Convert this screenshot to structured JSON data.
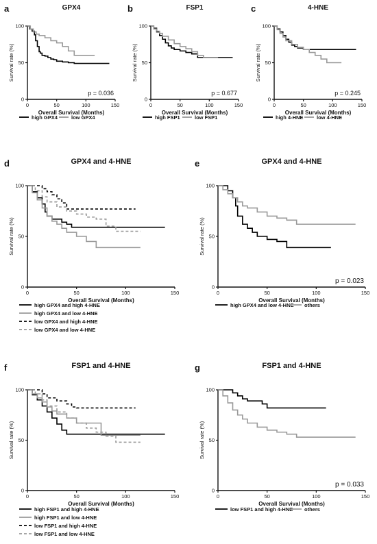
{
  "chart_data": [
    {
      "panel": "a",
      "type": "line",
      "title": "GPX4",
      "xlabel": "Overall Survival (Months)",
      "ylabel": "Survival rate (%)",
      "xlim": [
        0,
        150
      ],
      "ylim": [
        0,
        100
      ],
      "xticks": [
        "0",
        "50",
        "100",
        "150"
      ],
      "yticks": [
        "0",
        "50",
        "100"
      ],
      "pvalue": "p = 0.036",
      "series": [
        {
          "name": "high GPX4",
          "color": "#000000",
          "dash": "solid",
          "x": [
            0,
            4,
            8,
            12,
            14,
            17,
            20,
            22,
            25,
            30,
            35,
            40,
            45,
            50,
            60,
            70,
            80,
            100,
            140
          ],
          "y": [
            100,
            96,
            93,
            88,
            80,
            72,
            65,
            63,
            60,
            59,
            57,
            55,
            54,
            52,
            51,
            50,
            49,
            49,
            49
          ]
        },
        {
          "name": "low GPX4",
          "color": "#999999",
          "dash": "solid",
          "x": [
            0,
            5,
            10,
            15,
            20,
            30,
            40,
            50,
            60,
            70,
            80,
            90,
            115
          ],
          "y": [
            100,
            96,
            92,
            89,
            87,
            84,
            80,
            77,
            72,
            66,
            60,
            60,
            60
          ]
        }
      ]
    },
    {
      "panel": "b",
      "type": "line",
      "title": "FSP1",
      "xlabel": "Overall Survival (Months)",
      "ylabel": "Survival rate (%)",
      "xlim": [
        0,
        150
      ],
      "ylim": [
        0,
        100
      ],
      "xticks": [
        "0",
        "50",
        "100",
        "150"
      ],
      "yticks": [
        "0",
        "50",
        "100"
      ],
      "pvalue": "p = 0.677",
      "series": [
        {
          "name": "high FSP1",
          "color": "#000000",
          "dash": "solid",
          "x": [
            0,
            5,
            10,
            15,
            20,
            25,
            30,
            35,
            40,
            50,
            60,
            70,
            80,
            100,
            140
          ],
          "y": [
            100,
            97,
            92,
            87,
            82,
            77,
            73,
            70,
            68,
            66,
            64,
            62,
            57,
            57,
            57
          ]
        },
        {
          "name": "low FSP1",
          "color": "#999999",
          "dash": "solid",
          "x": [
            0,
            5,
            10,
            15,
            20,
            30,
            40,
            50,
            60,
            70,
            80,
            90,
            115
          ],
          "y": [
            100,
            96,
            93,
            90,
            86,
            81,
            76,
            72,
            69,
            65,
            60,
            57,
            57
          ]
        }
      ]
    },
    {
      "panel": "c",
      "type": "line",
      "title": "4-HNE",
      "xlabel": "Overall Survival (Months)",
      "ylabel": "Survival rate (%)",
      "xlim": [
        0,
        150
      ],
      "ylim": [
        0,
        100
      ],
      "xticks": [
        "0",
        "50",
        "100",
        "150"
      ],
      "yticks": [
        "0",
        "50",
        "100"
      ],
      "pvalue": "p = 0.245",
      "series": [
        {
          "name": "high 4-HNE",
          "color": "#000000",
          "dash": "solid",
          "x": [
            0,
            5,
            10,
            15,
            20,
            25,
            30,
            35,
            40,
            50,
            140
          ],
          "y": [
            100,
            96,
            92,
            87,
            82,
            78,
            74,
            72,
            70,
            68,
            68
          ]
        },
        {
          "name": "low 4-HNE",
          "color": "#999999",
          "dash": "solid",
          "x": [
            0,
            5,
            10,
            15,
            20,
            30,
            40,
            50,
            60,
            70,
            80,
            90,
            115
          ],
          "y": [
            100,
            95,
            90,
            85,
            80,
            75,
            71,
            68,
            64,
            60,
            55,
            50,
            50
          ]
        }
      ]
    },
    {
      "panel": "d",
      "type": "line",
      "title": "GPX4 and 4-HNE",
      "xlabel": "Overall Survival (Months)",
      "ylabel": "Survival rate (%)",
      "xlim": [
        0,
        150
      ],
      "ylim": [
        0,
        100
      ],
      "xticks": [
        "0",
        "50",
        "100",
        "150"
      ],
      "yticks": [
        "0",
        "50",
        "100"
      ],
      "pvalue": "",
      "series": [
        {
          "name": "high GPX4 and high 4-HNE",
          "color": "#000000",
          "dash": "solid",
          "x": [
            0,
            5,
            10,
            15,
            18,
            20,
            25,
            35,
            40,
            45,
            140
          ],
          "y": [
            100,
            94,
            88,
            82,
            74,
            70,
            67,
            64,
            62,
            59,
            59
          ]
        },
        {
          "name": "high GPX4 and low 4-HNE",
          "color": "#999999",
          "dash": "solid",
          "x": [
            0,
            5,
            10,
            15,
            20,
            25,
            30,
            35,
            40,
            50,
            60,
            70,
            115
          ],
          "y": [
            100,
            93,
            86,
            78,
            70,
            65,
            62,
            58,
            54,
            50,
            45,
            39,
            39
          ]
        },
        {
          "name": "low GPX4 and high 4-HNE",
          "color": "#000000",
          "dash": "dashed",
          "x": [
            0,
            10,
            15,
            20,
            25,
            30,
            35,
            40,
            110
          ],
          "y": [
            100,
            100,
            97,
            94,
            91,
            87,
            83,
            77,
            77
          ]
        },
        {
          "name": "low GPX4 and low 4-HNE",
          "color": "#999999",
          "dash": "dashed",
          "x": [
            0,
            8,
            15,
            20,
            30,
            40,
            50,
            60,
            70,
            80,
            90,
            115
          ],
          "y": [
            100,
            95,
            89,
            84,
            79,
            75,
            72,
            69,
            67,
            60,
            55,
            55
          ]
        }
      ]
    },
    {
      "panel": "e",
      "type": "line",
      "title": "GPX4 and 4-HNE",
      "xlabel": "Overall Survival (Months)",
      "ylabel": "Survival rate (%)",
      "xlim": [
        0,
        150
      ],
      "ylim": [
        0,
        100
      ],
      "xticks": [
        "0",
        "50",
        "100",
        "150"
      ],
      "yticks": [
        "0",
        "50",
        "100"
      ],
      "pvalue": "p = 0.023",
      "series": [
        {
          "name": "high GPX4 and low 4-HNE",
          "color": "#000000",
          "dash": "solid",
          "x": [
            0,
            10,
            15,
            18,
            20,
            25,
            30,
            35,
            40,
            50,
            60,
            70,
            115
          ],
          "y": [
            100,
            95,
            88,
            80,
            70,
            62,
            58,
            54,
            50,
            47,
            45,
            39,
            39
          ]
        },
        {
          "name": "others",
          "color": "#999999",
          "dash": "solid",
          "x": [
            0,
            5,
            10,
            15,
            20,
            25,
            30,
            40,
            50,
            60,
            70,
            80,
            100,
            140
          ],
          "y": [
            100,
            96,
            92,
            88,
            84,
            80,
            78,
            74,
            70,
            68,
            66,
            62,
            62,
            62
          ]
        }
      ]
    },
    {
      "panel": "f",
      "type": "line",
      "title": "FSP1 and 4-HNE",
      "xlabel": "Overall Survival (Months)",
      "ylabel": "Survival rate (%)",
      "xlim": [
        0,
        150
      ],
      "ylim": [
        0,
        100
      ],
      "xticks": [
        "0",
        "50",
        "100",
        "150"
      ],
      "yticks": [
        "0",
        "50",
        "100"
      ],
      "pvalue": "",
      "series": [
        {
          "name": "high FSP1 and high 4-HNE",
          "color": "#000000",
          "dash": "solid",
          "x": [
            0,
            5,
            10,
            15,
            20,
            25,
            30,
            35,
            40,
            140
          ],
          "y": [
            100,
            95,
            90,
            84,
            78,
            72,
            66,
            60,
            56,
            56
          ]
        },
        {
          "name": "high FSP1 and low 4-HNE",
          "color": "#999999",
          "dash": "solid",
          "x": [
            0,
            5,
            10,
            15,
            20,
            25,
            30,
            40,
            50,
            60,
            70,
            75,
            80,
            115
          ],
          "y": [
            100,
            96,
            92,
            88,
            83,
            79,
            76,
            72,
            67,
            67,
            67,
            55,
            55,
            55
          ]
        },
        {
          "name": "low FSP1 and high 4-HNE",
          "color": "#000000",
          "dash": "dashed",
          "x": [
            0,
            10,
            15,
            20,
            30,
            40,
            45,
            50,
            110
          ],
          "y": [
            100,
            100,
            96,
            92,
            89,
            86,
            83,
            82,
            82
          ]
        },
        {
          "name": "low FSP1 and low 4-HNE",
          "color": "#999999",
          "dash": "dashed",
          "x": [
            0,
            8,
            15,
            20,
            30,
            40,
            50,
            60,
            70,
            80,
            90,
            115
          ],
          "y": [
            100,
            96,
            90,
            84,
            78,
            72,
            67,
            62,
            58,
            54,
            48,
            48
          ]
        }
      ]
    },
    {
      "panel": "g",
      "type": "line",
      "title": "FSP1 and 4-HNE",
      "xlabel": "Overall Survival (Months)",
      "ylabel": "Survival rate (%)",
      "xlim": [
        0,
        150
      ],
      "ylim": [
        0,
        100
      ],
      "xticks": [
        "0",
        "50",
        "100",
        "150"
      ],
      "yticks": [
        "0",
        "50",
        "100"
      ],
      "pvalue": "p = 0.033",
      "series": [
        {
          "name": "low FSP1 and high 4-HNE",
          "color": "#000000",
          "dash": "solid",
          "x": [
            0,
            10,
            15,
            20,
            25,
            30,
            40,
            45,
            50,
            110
          ],
          "y": [
            100,
            100,
            97,
            94,
            91,
            89,
            89,
            86,
            82,
            82
          ]
        },
        {
          "name": "others",
          "color": "#999999",
          "dash": "solid",
          "x": [
            0,
            5,
            10,
            15,
            20,
            25,
            30,
            40,
            50,
            60,
            70,
            80,
            100,
            140
          ],
          "y": [
            100,
            94,
            87,
            80,
            75,
            71,
            67,
            63,
            60,
            58,
            56,
            53,
            53,
            53
          ]
        }
      ]
    }
  ]
}
